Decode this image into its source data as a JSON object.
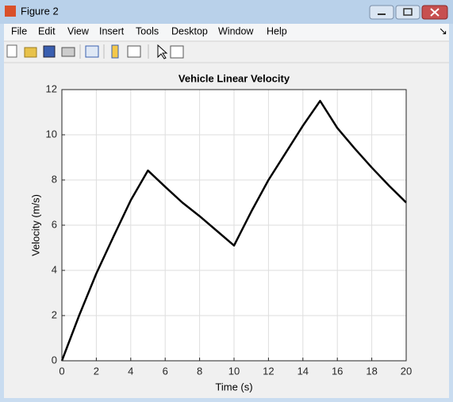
{
  "window": {
    "title": "Figure 2",
    "menu": [
      "File",
      "Edit",
      "View",
      "Insert",
      "Tools",
      "Desktop",
      "Window",
      "Help"
    ]
  },
  "chart_data": {
    "type": "line",
    "title": "Vehicle Linear Velocity",
    "x_label": "Time (s)",
    "y_label": "Velocity (m/s)",
    "x": [
      0,
      1,
      2,
      3,
      4,
      5,
      6,
      7,
      8,
      9,
      10,
      11,
      12,
      13,
      14,
      15,
      16,
      17,
      18,
      19,
      20
    ],
    "values": [
      0,
      2.0,
      3.86,
      5.5,
      7.1,
      8.42,
      7.7,
      7.0,
      6.4,
      5.75,
      5.1,
      6.6,
      8.0,
      9.2,
      10.4,
      11.5,
      10.3,
      9.4,
      8.55,
      7.75,
      7.0
    ],
    "color": "#000000",
    "xlim": [
      0,
      20
    ],
    "xticks": [
      0,
      2,
      4,
      6,
      8,
      10,
      12,
      14,
      16,
      18,
      20
    ],
    "ylim": [
      0,
      12
    ],
    "yticks": [
      0,
      2,
      4,
      6,
      8,
      10,
      12
    ],
    "grid": true
  }
}
